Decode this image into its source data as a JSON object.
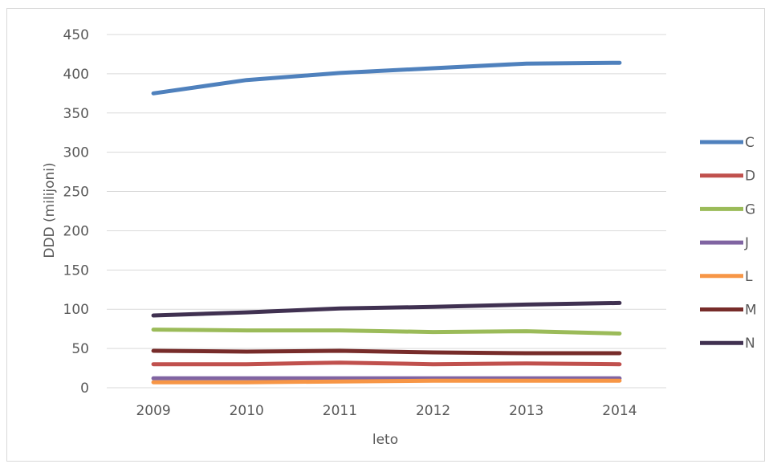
{
  "chart_data": {
    "type": "line",
    "xlabel": "leto",
    "ylabel": "DDD (milijoni)",
    "categories": [
      "2009",
      "2010",
      "2011",
      "2012",
      "2013",
      "2014"
    ],
    "ylim": [
      0,
      450
    ],
    "yticks": [
      0,
      50,
      100,
      150,
      200,
      250,
      300,
      350,
      400,
      450
    ],
    "grid": true,
    "legend": "right",
    "series": [
      {
        "name": "C",
        "color": "#4f81bd",
        "values": [
          375,
          392,
          401,
          407,
          413,
          414
        ]
      },
      {
        "name": "D",
        "color": "#c0504d",
        "values": [
          30,
          30,
          32,
          30,
          31,
          30
        ]
      },
      {
        "name": "G",
        "color": "#9bbb59",
        "values": [
          74,
          73,
          73,
          71,
          72,
          69
        ]
      },
      {
        "name": "J",
        "color": "#8064a2",
        "values": [
          12,
          12,
          12,
          12,
          12,
          12
        ]
      },
      {
        "name": "L",
        "color": "#f79646",
        "values": [
          7,
          7,
          8,
          9,
          9,
          9
        ]
      },
      {
        "name": "M",
        "color": "#772c2a",
        "values": [
          47,
          46,
          47,
          45,
          44,
          44
        ]
      },
      {
        "name": "N",
        "color": "#403151",
        "values": [
          92,
          96,
          101,
          103,
          106,
          108
        ]
      }
    ]
  }
}
